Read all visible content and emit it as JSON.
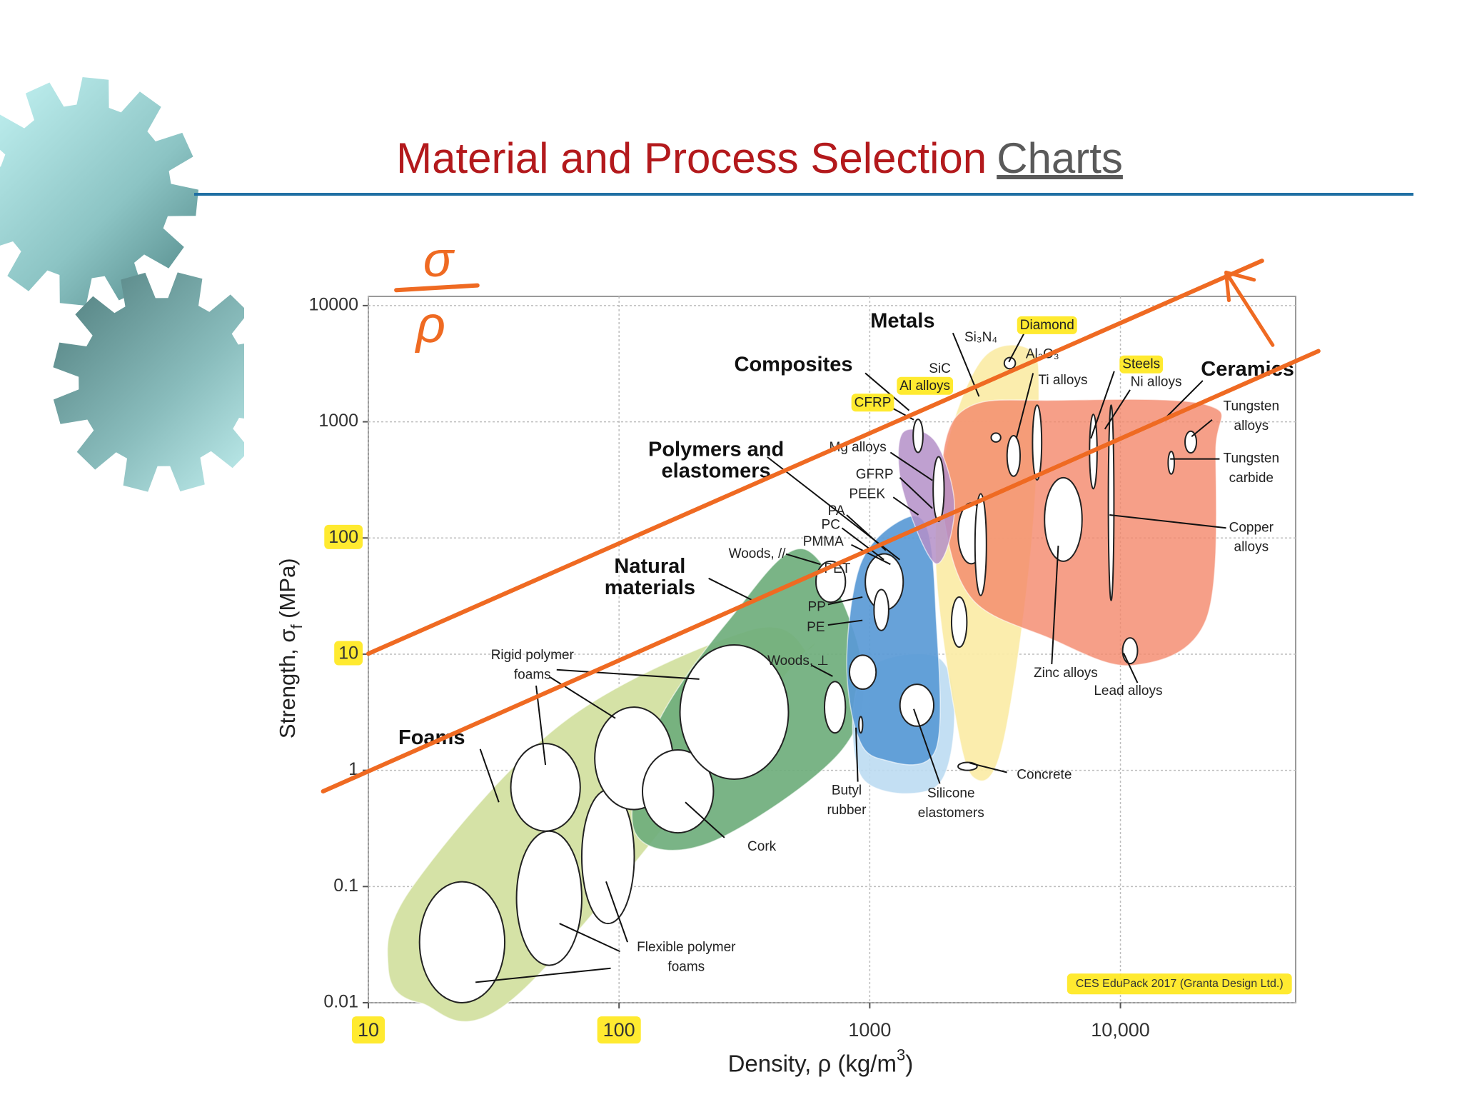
{
  "header": {
    "title": "Material and Process Selection",
    "title_link": "Charts"
  },
  "chart_data": {
    "type": "ashby",
    "xlabel": [
      "Density, ρ  (kg/m",
      "3",
      ")"
    ],
    "ylabel": [
      "Strength, σ",
      "f",
      " (MPa)"
    ],
    "xscale": "log",
    "yscale": "log",
    "xlim": [
      10,
      50000
    ],
    "ylim": [
      0.01,
      12000
    ],
    "xticks": [
      10,
      100,
      1000,
      {
        "value": 10000,
        "label": "10,000"
      }
    ],
    "yticks": [
      0.01,
      0.1,
      1,
      10,
      100,
      1000,
      10000
    ],
    "grid": true,
    "families": [
      {
        "label": [
          "Foams"
        ],
        "color": "#d5e2a6",
        "x": [
          12,
          16,
          40,
          460,
          550,
          330,
          60,
          15
        ],
        "y": [
          0.02,
          0.01,
          0.012,
          6.6,
          11,
          16,
          2.6,
          0.1
        ]
      },
      {
        "label": [
          "Natural",
          "materials"
        ],
        "color": "#6fae7c",
        "x": [
          116,
          232,
          776,
          920,
          550,
          276,
          138
        ],
        "y": [
          0.29,
          0.24,
          1.5,
          9.6,
          80,
          20,
          2.2
        ]
      },
      {
        "color": "#bcdcf2",
        "x": [
          930,
          1833,
          2180,
          1833,
          930
        ],
        "y": [
          0.87,
          0.72,
          3.2,
          9.6,
          6.6
        ]
      },
      {
        "label": [
          "Polymers and",
          "elastomers"
        ],
        "color": "#5a9ad6",
        "x": [
          881,
          1094,
          1833,
          1833,
          1680,
          1300,
          920,
          810
        ],
        "y": [
          2.2,
          1.26,
          1.5,
          24,
          127,
          138,
          60,
          9.6
        ]
      },
      {
        "label": [
          "Ceramics"
        ],
        "color": "#fbeca6",
        "x": [
          2000,
          2820,
          4340,
          4730,
          4340,
          3350,
          2590,
          2180,
          1833
        ],
        "y": [
          550,
          3500,
          4200,
          1660,
          60,
          1.5,
          0.87,
          3.2,
          60
        ]
      },
      {
        "label": [
          "Metals"
        ],
        "color": "#f4876a",
        "x": [
          2590,
          5100,
          22000,
          24000,
          22000,
          11200,
          5100,
          2590,
          2000,
          2000
        ],
        "y": [
          1400,
          1530,
          1400,
          550,
          20,
          8,
          14,
          29,
          127,
          670
        ]
      },
      {
        "label": [
          "Composites"
        ],
        "color": "#b48fc8",
        "x": [
          1350,
          1833,
          2180,
          1833,
          1350
        ],
        "y": [
          800,
          670,
          183,
          60,
          265
        ]
      }
    ],
    "bubbles": [
      {
        "x": [
          16,
          35
        ],
        "y": [
          0.01,
          0.11
        ]
      },
      {
        "x": [
          39,
          71
        ],
        "y": [
          0.021,
          0.3
        ]
      },
      {
        "x": [
          71,
          115
        ],
        "y": [
          0.048,
          0.68
        ]
      },
      {
        "x": [
          37,
          70
        ],
        "y": [
          0.3,
          1.7
        ]
      },
      {
        "x": [
          80,
          164
        ],
        "y": [
          0.46,
          3.5
        ]
      },
      {
        "x": [
          124,
          238
        ],
        "y": [
          0.29,
          1.5
        ]
      },
      {
        "x": [
          175,
          474
        ],
        "y": [
          0.84,
          12
        ]
      },
      {
        "x": [
          610,
          800
        ],
        "y": [
          28,
          63
        ]
      },
      {
        "x": [
          660,
          800
        ],
        "y": [
          2.1,
          5.8
        ]
      },
      {
        "x": [
          830,
          1060
        ],
        "y": [
          5,
          9.8
        ]
      },
      {
        "x": [
          1320,
          1800
        ],
        "y": [
          2.4,
          5.5
        ]
      },
      {
        "x": [
          960,
          1360
        ],
        "y": [
          24,
          73
        ]
      },
      {
        "x": [
          2250,
          2870
        ],
        "y": [
          60,
          200
        ]
      },
      {
        "x": [
          4980,
          7030
        ],
        "y": [
          63,
          330
        ]
      },
      {
        "x": [
          10200,
          11700
        ],
        "y": [
          8.3,
          13.8
        ]
      },
      {
        "x": [
          18100,
          20100
        ],
        "y": [
          540,
          830
        ]
      },
      {
        "x": [
          3530,
          3980
        ],
        "y": [
          340,
          760
        ]
      },
      {
        "x": [
          1490,
          1630
        ],
        "y": [
          545,
          1050
        ]
      },
      {
        "x": [
          4460,
          4850
        ],
        "y": [
          316,
          1390
        ]
      },
      {
        "x": [
          8950,
          9420
        ],
        "y": [
          29,
          1390
        ]
      },
      {
        "x": [
          2250,
          2680
        ],
        "y": [
          1,
          1.17
        ]
      },
      {
        "x": [
          1790,
          1980
        ],
        "y": [
          139,
          500
        ]
      },
      {
        "x": [
          2120,
          2440
        ],
        "y": [
          11.5,
          31
        ]
      },
      {
        "x": [
          2630,
          2920
        ],
        "y": [
          32,
          240
        ]
      },
      {
        "x": [
          1040,
          1190
        ],
        "y": [
          16,
          36
        ]
      },
      {
        "x": [
          905,
          937
        ],
        "y": [
          2.1,
          2.9
        ]
      },
      {
        "x": [
          15500,
          16400
        ],
        "y": [
          355,
          555
        ]
      },
      {
        "x": [
          3440,
          3810
        ],
        "y": [
          2860,
          3570
        ]
      },
      {
        "x": [
          3050,
          3330
        ],
        "y": [
          670,
          800
        ]
      },
      {
        "x": [
          7530,
          8070
        ],
        "y": [
          265,
          1160
        ]
      }
    ],
    "labels": [
      [
        "Si₃N₄"
      ],
      [
        "Diamond"
      ],
      [
        "Al₂O₃"
      ],
      [
        "SiC"
      ],
      [
        "Al alloys"
      ],
      [
        "Ti alloys"
      ],
      [
        "Steels"
      ],
      [
        "Ni alloys"
      ],
      [
        "Tungsten",
        "alloys"
      ],
      [
        "Tungsten",
        "carbide"
      ],
      [
        "Copper",
        "alloys"
      ],
      [
        "CFRP"
      ],
      [
        "Mg alloys"
      ],
      [
        "GFRP"
      ],
      [
        "PEEK"
      ],
      [
        "PA"
      ],
      [
        "PC"
      ],
      [
        "PMMA"
      ],
      [
        "Woods, //"
      ],
      [
        "PET"
      ],
      [
        "PP"
      ],
      [
        "PE"
      ],
      [
        "Woods, ⊥"
      ],
      [
        "Rigid polymer",
        "foams"
      ],
      [
        "Cork"
      ],
      [
        "Flexible polymer",
        "foams"
      ],
      [
        "Butyl",
        "rubber"
      ],
      [
        "Silicone",
        "elastomers"
      ],
      [
        "Concrete"
      ],
      [
        "Zinc alloys"
      ],
      [
        "Lead alloys"
      ]
    ],
    "credit": "CES EduPack 2017 (Granta Design Ltd.)",
    "annotations": {
      "trend_lines": [
        {
          "x": [
            10,
            36700
          ],
          "y": [
            10.1,
            24300
          ],
          "color": "#ef6a22"
        },
        {
          "x": [
            6.6,
            61600
          ],
          "y": [
            0.66,
            4060
          ],
          "color": "#ef6a22"
        }
      ],
      "handwritten": [
        "σ",
        "ρ"
      ]
    }
  }
}
